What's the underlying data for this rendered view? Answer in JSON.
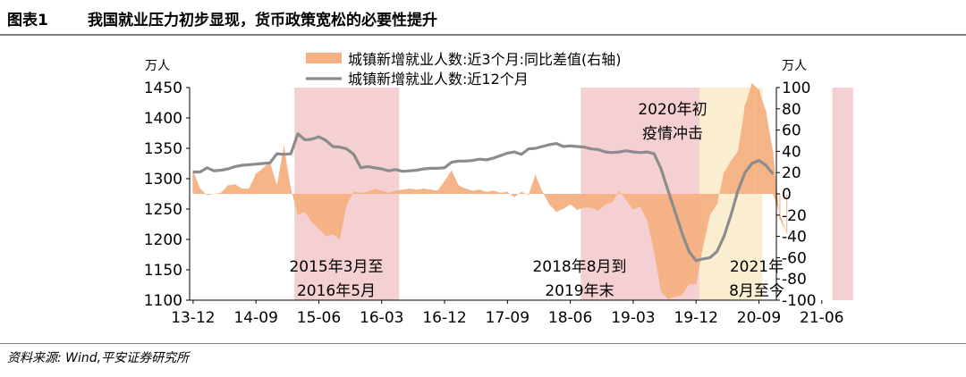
{
  "header": {
    "figure_label": "图表1",
    "title": "我国就业压力初步显现，货币政策宽松的必要性提升"
  },
  "source": "资料来源: Wind,平安证券研究所",
  "colors": {
    "bar": "#f4b183",
    "line": "#8c8c8c",
    "shade_pink": "#f5d0d3",
    "shade_yellow": "#fbeed0"
  },
  "chart_data": {
    "type": "line+area",
    "left_unit": "万人",
    "right_unit": "万人",
    "left_ylim": [
      1100,
      1450
    ],
    "left_ticks": [
      "1450",
      "1400",
      "1350",
      "1300",
      "1250",
      "1200",
      "1150",
      "1100"
    ],
    "right_ylim": [
      -100,
      100
    ],
    "right_ticks": [
      "100",
      "80",
      "60",
      "40",
      "20",
      "0",
      "-20",
      "-40",
      "-60",
      "-80",
      "-100"
    ],
    "x_ticks": [
      "13-12",
      "14-09",
      "15-06",
      "16-03",
      "16-12",
      "17-09",
      "18-06",
      "19-03",
      "19-12",
      "20-09",
      "21-06"
    ],
    "legend": [
      {
        "label": "城镇新增就业人数:近3个月:同比差值(右轴)",
        "kind": "area"
      },
      {
        "label": "城镇新增就业人数:近12个月",
        "kind": "line"
      }
    ],
    "annotations": [
      {
        "lines": [
          "2015年3月至",
          "2016年5月"
        ],
        "start": "2015-03",
        "end": "2016-05",
        "shade": "pink"
      },
      {
        "lines": [
          "2018年8月到",
          "2019年末"
        ],
        "start": "2018-08",
        "end": "2019-12",
        "shade": "pink"
      },
      {
        "lines": [
          "2020年初",
          "疫情冲击"
        ],
        "start": "2020-01",
        "end": "2020-09",
        "shade": "yellow"
      },
      {
        "lines": [
          "2021年",
          "8月至今"
        ],
        "start": "2021-08",
        "end": "2021-10",
        "shade": "pink"
      }
    ],
    "series": [
      {
        "name": "城镇新增就业人数:近12个月",
        "axis": "left",
        "start": "2013-12",
        "values": [
          1311,
          1311,
          1318,
          1313,
          1314,
          1316,
          1320,
          1322,
          1323,
          1324,
          1325,
          1326,
          1341,
          1340,
          1341,
          1374,
          1364,
          1365,
          1369,
          1363,
          1353,
          1352,
          1349,
          1340,
          1318,
          1320,
          1318,
          1316,
          1313,
          1315,
          1312,
          1313,
          1314,
          1316,
          1317,
          1317,
          1318,
          1327,
          1329,
          1329,
          1330,
          1332,
          1331,
          1334,
          1338,
          1342,
          1344,
          1340,
          1349,
          1350,
          1353,
          1356,
          1358,
          1353,
          1354,
          1353,
          1352,
          1349,
          1348,
          1344,
          1343,
          1344,
          1346,
          1344,
          1343,
          1344,
          1341,
          1316,
          1280,
          1245,
          1210,
          1180,
          1165,
          1168,
          1170,
          1180,
          1205,
          1240,
          1280,
          1310,
          1325,
          1330,
          1322,
          1308
        ]
      },
      {
        "name": "城镇新增就业人数:近3个月:同比差值(右轴)",
        "axis": "right",
        "start": "2013-12",
        "values": [
          22,
          5,
          -1,
          0,
          1,
          8,
          9,
          5,
          5,
          19,
          24,
          30,
          8,
          45,
          5,
          -20,
          -17,
          -27,
          -33,
          -40,
          -38,
          -43,
          -10,
          2,
          1,
          2,
          5,
          3,
          1,
          3,
          4,
          5,
          4,
          5,
          4,
          3,
          12,
          22,
          8,
          5,
          3,
          4,
          2,
          3,
          1,
          2,
          -3,
          2,
          -1,
          18,
          2,
          -10,
          -17,
          -14,
          -10,
          -15,
          -13,
          -13,
          -16,
          -10,
          -8,
          3,
          -6,
          -15,
          -12,
          -25,
          -55,
          -92,
          -99,
          -97,
          -95,
          -85,
          -85,
          -50,
          -20,
          -10,
          20,
          31,
          40,
          83,
          104,
          98,
          78,
          40,
          -24,
          -37
        ]
      }
    ]
  }
}
